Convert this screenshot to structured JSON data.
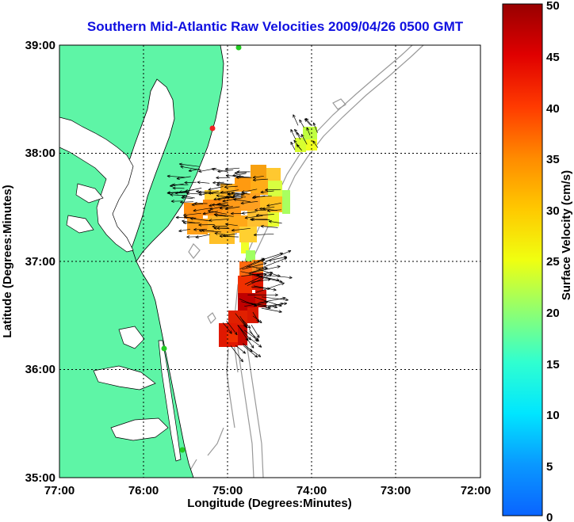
{
  "title": "Southern Mid-Atlantic Raw Velocities 2009/04/26 0500 GMT",
  "map": {
    "xlabel": "Longitude (Degrees:Minutes)",
    "ylabel": "Latitude (Degrees:Minutes)",
    "x_ticks": [
      "77:00",
      "76:00",
      "75:00",
      "74:00",
      "73:00",
      "72:00"
    ],
    "y_ticks": [
      "39:00",
      "38:00",
      "37:00",
      "36:00",
      "35:00"
    ],
    "lon_range": [
      -77,
      -72
    ],
    "lat_range": [
      35,
      39
    ],
    "grid": "dotted",
    "land_color": "#5ef5a6",
    "coast_line_color": "#000000",
    "bathymetry_color": "#999999",
    "station_colors": {
      "active": "#22cc22",
      "inactive": "#ee2222"
    }
  },
  "colorbar": {
    "label": "Surface Velocity (cm/s)",
    "ticks": [
      "50",
      "45",
      "40",
      "35",
      "30",
      "25",
      "20",
      "15",
      "10",
      "5",
      "0"
    ],
    "range": [
      0,
      50
    ]
  }
}
